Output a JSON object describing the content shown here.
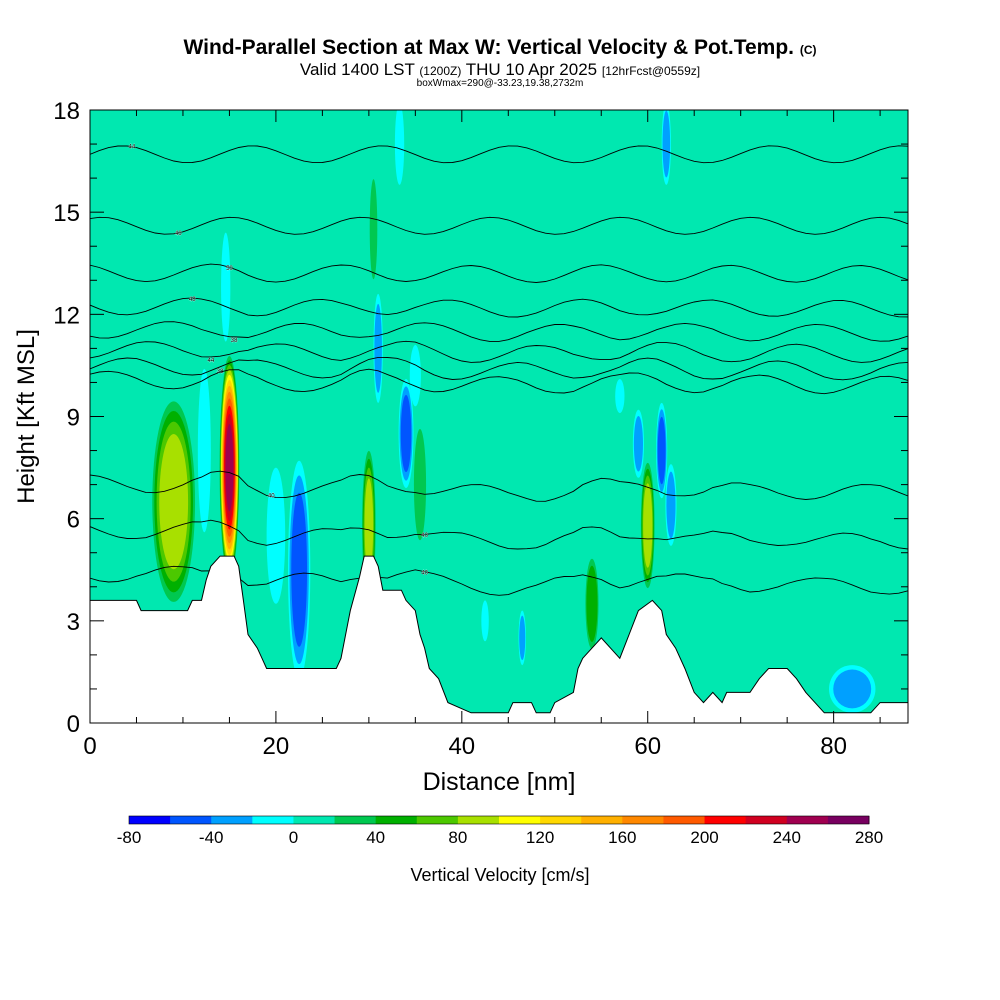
{
  "title": {
    "main": "Wind-Parallel Section at Max W: Vertical Velocity & Pot.Temp.",
    "copyright": "(C)",
    "valid_prefix": "Valid 1400 LST",
    "valid_utc": "(1200Z)",
    "valid_date": "THU 10 Apr 2025",
    "forecast": "[12hrFcst@0559z]",
    "box_info": "boxWmax=290@-33.23,19.38,2732m"
  },
  "chart_data": {
    "type": "heatmap",
    "xlabel": "Distance [nm]",
    "ylabel": "Height [Kft MSL]",
    "xlim": [
      0,
      88
    ],
    "ylim": [
      0,
      18
    ],
    "x_ticks": [
      0,
      20,
      40,
      60,
      80
    ],
    "y_ticks": [
      0,
      3,
      6,
      9,
      12,
      15,
      18
    ],
    "colorbar": {
      "label": "Vertical Velocity [cm/s]",
      "min": -80,
      "max": 280,
      "step": 20,
      "tick_labels": [
        "-80",
        "-40",
        "0",
        "40",
        "80",
        "120",
        "160",
        "200",
        "240",
        "280"
      ],
      "colors": [
        "#0000ff",
        "#0055ff",
        "#00a0ff",
        "#00ffff",
        "#00e8b0",
        "#00c850",
        "#00b000",
        "#4cc800",
        "#a8e000",
        "#ffff00",
        "#ffd800",
        "#ffb000",
        "#ff8800",
        "#ff5a00",
        "#ff0000",
        "#d00020",
        "#a00050",
        "#780060"
      ]
    },
    "background_w": 5,
    "terrain": [
      [
        0,
        3.6
      ],
      [
        5,
        3.6
      ],
      [
        5.5,
        3.3
      ],
      [
        10.5,
        3.3
      ],
      [
        11,
        3.6
      ],
      [
        12,
        3.6
      ],
      [
        12.5,
        4.2
      ],
      [
        13,
        4.6
      ],
      [
        14,
        4.9
      ],
      [
        15.5,
        4.9
      ],
      [
        16,
        4.6
      ],
      [
        16.5,
        3.6
      ],
      [
        17,
        2.6
      ],
      [
        18,
        2.2
      ],
      [
        18.5,
        1.9
      ],
      [
        19,
        1.6
      ],
      [
        26.5,
        1.6
      ],
      [
        27,
        1.9
      ],
      [
        28,
        3.3
      ],
      [
        29,
        4.3
      ],
      [
        29.5,
        4.9
      ],
      [
        30.5,
        4.9
      ],
      [
        31,
        4.6
      ],
      [
        31.5,
        3.9
      ],
      [
        33.5,
        3.9
      ],
      [
        34,
        3.6
      ],
      [
        35,
        3.3
      ],
      [
        35.5,
        2.6
      ],
      [
        36,
        2.2
      ],
      [
        36.5,
        1.6
      ],
      [
        37.5,
        1.3
      ],
      [
        38.5,
        0.6
      ],
      [
        41,
        0.3
      ],
      [
        45,
        0.3
      ],
      [
        45.5,
        0.6
      ],
      [
        47.5,
        0.6
      ],
      [
        48,
        0.3
      ],
      [
        49.5,
        0.3
      ],
      [
        50,
        0.6
      ],
      [
        52,
        0.9
      ],
      [
        52.5,
        1.6
      ],
      [
        53,
        1.9
      ],
      [
        54,
        2.2
      ],
      [
        55,
        2.5
      ],
      [
        56,
        2.2
      ],
      [
        57,
        1.9
      ],
      [
        58,
        2.6
      ],
      [
        59,
        3.3
      ],
      [
        60.5,
        3.6
      ],
      [
        61.5,
        3.3
      ],
      [
        62,
        2.6
      ],
      [
        63,
        2.2
      ],
      [
        64,
        1.6
      ],
      [
        65,
        0.9
      ],
      [
        66,
        0.6
      ],
      [
        67,
        0.9
      ],
      [
        68,
        0.6
      ],
      [
        68.5,
        0.9
      ],
      [
        71,
        0.9
      ],
      [
        72,
        1.3
      ],
      [
        73,
        1.6
      ],
      [
        75,
        1.6
      ],
      [
        76,
        1.3
      ],
      [
        77,
        0.9
      ],
      [
        78,
        0.6
      ],
      [
        79,
        0.3
      ],
      [
        84,
        0.3
      ],
      [
        85,
        0.6
      ],
      [
        88,
        0.6
      ]
    ],
    "w_features": [
      {
        "x": 9,
        "y": 6.5,
        "rx": 2.5,
        "ry": 3.2,
        "w": 110
      },
      {
        "x": 15,
        "y": 7.5,
        "rx": 1.1,
        "ry": 3.4,
        "w": 260
      },
      {
        "x": 12.3,
        "y": 8.0,
        "rx": 0.7,
        "ry": 2.4,
        "w": -30
      },
      {
        "x": 14.6,
        "y": 12.8,
        "rx": 0.5,
        "ry": 1.6,
        "w": -30
      },
      {
        "x": 22.5,
        "y": 4.5,
        "rx": 1.2,
        "ry": 3.2,
        "w": -60
      },
      {
        "x": 20,
        "y": 5.5,
        "rx": 1.0,
        "ry": 2.0,
        "w": -30
      },
      {
        "x": 30,
        "y": 5.8,
        "rx": 0.8,
        "ry": 2.4,
        "w": 100
      },
      {
        "x": 30.5,
        "y": 14.5,
        "rx": 0.5,
        "ry": 1.8,
        "w": 40
      },
      {
        "x": 31,
        "y": 11.0,
        "rx": 0.5,
        "ry": 1.6,
        "w": -40
      },
      {
        "x": 34,
        "y": 8.5,
        "rx": 0.8,
        "ry": 1.6,
        "w": -60
      },
      {
        "x": 33.3,
        "y": 17.0,
        "rx": 0.5,
        "ry": 1.2,
        "w": -30
      },
      {
        "x": 35,
        "y": 10.2,
        "rx": 0.6,
        "ry": 0.9,
        "w": -30
      },
      {
        "x": 35.5,
        "y": 7.0,
        "rx": 0.8,
        "ry": 2.0,
        "w": 40
      },
      {
        "x": 54,
        "y": 3.5,
        "rx": 0.8,
        "ry": 1.5,
        "w": 70
      },
      {
        "x": 60,
        "y": 5.8,
        "rx": 0.8,
        "ry": 2.0,
        "w": 110
      },
      {
        "x": 61.5,
        "y": 8.0,
        "rx": 0.6,
        "ry": 1.4,
        "w": -60
      },
      {
        "x": 62.5,
        "y": 6.4,
        "rx": 0.6,
        "ry": 1.2,
        "w": -40
      },
      {
        "x": 62,
        "y": 17.0,
        "rx": 0.5,
        "ry": 1.2,
        "w": -40
      },
      {
        "x": 59,
        "y": 8.2,
        "rx": 0.6,
        "ry": 1.0,
        "w": -40
      },
      {
        "x": 46.5,
        "y": 2.5,
        "rx": 0.4,
        "ry": 0.8,
        "w": -40
      },
      {
        "x": 42.5,
        "y": 3.0,
        "rx": 0.4,
        "ry": 0.6,
        "w": -30
      },
      {
        "x": 57,
        "y": 9.6,
        "rx": 0.5,
        "ry": 0.5,
        "w": -30
      },
      {
        "x": 82,
        "y": 1.0,
        "rx": 2.5,
        "ry": 0.7,
        "w": -40
      },
      {
        "x": 4,
        "y": 6.5,
        "rx": 1.8,
        "ry": 2.4,
        "w": 30
      },
      {
        "x": 40,
        "y": 9.5,
        "rx": 2.0,
        "ry": 1.0,
        "w": 25
      },
      {
        "x": 18,
        "y": 15.0,
        "rx": 1.0,
        "ry": 2.5,
        "w": 25
      },
      {
        "x": 51,
        "y": 13.0,
        "rx": 1.2,
        "ry": 3.0,
        "w": 25
      },
      {
        "x": 75,
        "y": 14.0,
        "rx": 1.5,
        "ry": 3.0,
        "w": 25
      },
      {
        "x": 86,
        "y": 10.5,
        "rx": 1.5,
        "ry": 1.5,
        "w": 25
      },
      {
        "x": 45,
        "y": 16.5,
        "rx": 1.5,
        "ry": 1.5,
        "w": 25
      }
    ],
    "isentropes": [
      {
        "base": 16.7,
        "label": "44",
        "lx": 4.5
      },
      {
        "base": 14.6,
        "label": "46",
        "lx": 9.5
      },
      {
        "base": 13.2,
        "label": "50",
        "lx": 15.0
      },
      {
        "base": 12.2,
        "label": "48",
        "lx": 11.0
      },
      {
        "base": 11.5,
        "label": "38",
        "lx": 15.5
      },
      {
        "base": 10.9,
        "label": "44",
        "lx": 13.0
      },
      {
        "base": 10.4,
        "label": "38",
        "lx": 14.0
      },
      {
        "base": 10.0,
        "label": "",
        "lx": 0
      },
      {
        "base": 6.9,
        "label": "40",
        "lx": 19.5
      },
      {
        "base": 5.5,
        "label": "40",
        "lx": 36.0
      },
      {
        "base": 4.2,
        "label": "40",
        "lx": 36.0
      }
    ]
  }
}
